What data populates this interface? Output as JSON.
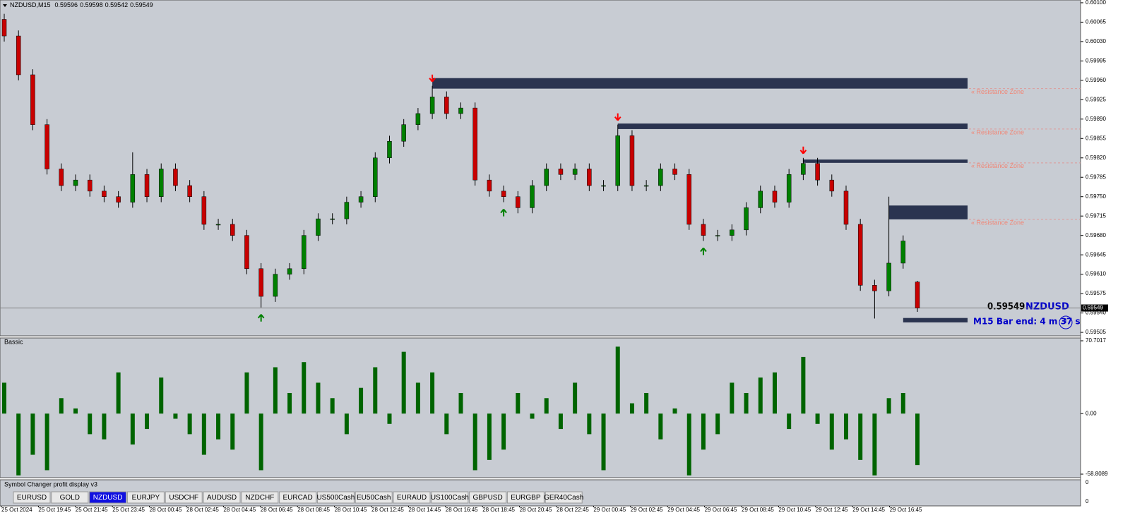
{
  "header": {
    "symbol": "NZDUSD,M15",
    "quote": [
      "0.59596",
      "0.59598",
      "0.59542",
      "0.59549"
    ]
  },
  "chart_data": {
    "type": "candlestick",
    "open": [
      0.6007,
      0.6004,
      0.5997,
      0.5988,
      0.598,
      0.5977,
      0.5978,
      0.5976,
      0.5975,
      0.5974,
      0.5979,
      0.5975,
      0.598,
      0.5977,
      0.5975,
      0.597,
      0.597,
      0.5968,
      0.5962,
      0.5957,
      0.5961,
      0.5962,
      0.5968,
      0.5971,
      0.5971,
      0.5974,
      0.5975,
      0.5982,
      0.5985,
      0.5988,
      0.599,
      0.5993,
      0.599,
      0.5991,
      0.5978,
      0.5976,
      0.5975,
      0.5973,
      0.5977,
      0.598,
      0.5979,
      0.598,
      0.5977,
      0.5977,
      0.5986,
      0.5977,
      0.5977,
      0.598,
      0.5979,
      0.597,
      0.5968,
      0.5968,
      0.5969,
      0.5973,
      0.5976,
      0.5974,
      0.5979,
      0.5981,
      0.5978,
      0.5976,
      0.597,
      0.5959,
      0.5958,
      0.5963,
      0.59596
    ],
    "high": [
      0.6008,
      0.6005,
      0.5998,
      0.5989,
      0.5981,
      0.5979,
      0.5979,
      0.5977,
      0.5976,
      0.5983,
      0.598,
      0.5981,
      0.5981,
      0.5978,
      0.5976,
      0.5971,
      0.5971,
      0.5969,
      0.5963,
      0.5962,
      0.5963,
      0.5969,
      0.5972,
      0.5972,
      0.5975,
      0.5976,
      0.5983,
      0.5986,
      0.5989,
      0.5991,
      0.5995,
      0.5994,
      0.5992,
      0.5992,
      0.5979,
      0.5977,
      0.5976,
      0.5978,
      0.5981,
      0.5981,
      0.5981,
      0.5981,
      0.5978,
      0.5988,
      0.5987,
      0.5978,
      0.5981,
      0.5981,
      0.598,
      0.5971,
      0.5969,
      0.597,
      0.5974,
      0.5977,
      0.5977,
      0.598,
      0.5982,
      0.5982,
      0.5979,
      0.5977,
      0.5971,
      0.596,
      0.5975,
      0.5968,
      0.59598
    ],
    "low": [
      0.6003,
      0.5996,
      0.5987,
      0.5979,
      0.5976,
      0.5976,
      0.5975,
      0.5974,
      0.5973,
      0.5973,
      0.5974,
      0.5974,
      0.5976,
      0.5974,
      0.5969,
      0.5969,
      0.5967,
      0.5961,
      0.5955,
      0.5956,
      0.596,
      0.5961,
      0.5967,
      0.597,
      0.597,
      0.5973,
      0.5974,
      0.5981,
      0.5984,
      0.5987,
      0.5989,
      0.5989,
      0.5989,
      0.5977,
      0.5975,
      0.5974,
      0.5972,
      0.5972,
      0.5976,
      0.5978,
      0.5978,
      0.5976,
      0.5976,
      0.5976,
      0.5976,
      0.5976,
      0.5976,
      0.5978,
      0.5969,
      0.5967,
      0.5967,
      0.5967,
      0.5968,
      0.5972,
      0.5973,
      0.5973,
      0.5978,
      0.5977,
      0.5975,
      0.5969,
      0.5958,
      0.5953,
      0.5957,
      0.5962,
      0.59542
    ],
    "close": [
      0.6004,
      0.5997,
      0.5988,
      0.598,
      0.5977,
      0.5978,
      0.5976,
      0.5975,
      0.5974,
      0.5979,
      0.5975,
      0.598,
      0.5977,
      0.5975,
      0.597,
      0.597,
      0.5968,
      0.5962,
      0.5957,
      0.5961,
      0.5962,
      0.5968,
      0.5971,
      0.5971,
      0.5974,
      0.5975,
      0.5982,
      0.5985,
      0.5988,
      0.599,
      0.5993,
      0.599,
      0.5991,
      0.5978,
      0.5976,
      0.5975,
      0.5973,
      0.5977,
      0.598,
      0.5979,
      0.598,
      0.5977,
      0.5977,
      0.5986,
      0.5977,
      0.5977,
      0.598,
      0.5979,
      0.597,
      0.5968,
      0.5968,
      0.5969,
      0.5973,
      0.5976,
      0.5974,
      0.5979,
      0.5981,
      0.5978,
      0.5976,
      0.597,
      0.5959,
      0.5958,
      0.5963,
      0.5967,
      0.59549
    ],
    "bull_color": "#008000",
    "bear_color": "#c80000",
    "ylim": [
      0.595,
      0.60105
    ],
    "yticks": [
      {
        "value": 0.601,
        "label": "0.60100"
      },
      {
        "value": 0.60065,
        "label": "0.60065"
      },
      {
        "value": 0.6003,
        "label": "0.60030"
      },
      {
        "value": 0.59995,
        "label": "0.59995"
      },
      {
        "value": 0.5996,
        "label": "0.59960"
      },
      {
        "value": 0.59925,
        "label": "0.59925"
      },
      {
        "value": 0.5989,
        "label": "0.59890"
      },
      {
        "value": 0.59855,
        "label": "0.59855"
      },
      {
        "value": 0.5982,
        "label": "0.59820"
      },
      {
        "value": 0.59785,
        "label": "0.59785"
      },
      {
        "value": 0.5975,
        "label": "0.59750"
      },
      {
        "value": 0.59715,
        "label": "0.59715"
      },
      {
        "value": 0.5968,
        "label": "0.59680"
      },
      {
        "value": 0.59645,
        "label": "0.59645"
      },
      {
        "value": 0.5961,
        "label": "0.59610"
      },
      {
        "value": 0.59575,
        "label": "0.59575"
      },
      {
        "value": 0.5954,
        "label": "0.59540"
      },
      {
        "value": 0.59505,
        "label": "0.59505"
      }
    ],
    "current_price": {
      "value": 0.59549,
      "label": "0.59549"
    },
    "zones": [
      {
        "top": 0.59964,
        "bottom": 0.59945,
        "start": 30,
        "label": "« Resistance Zone"
      },
      {
        "top": 0.59882,
        "bottom": 0.59872,
        "start": 43,
        "label": "« Resistance Zone"
      },
      {
        "top": 0.59817,
        "bottom": 0.59811,
        "start": 56,
        "label": "« Resistance Zone"
      },
      {
        "top": 0.59734,
        "bottom": 0.59709,
        "start": 62,
        "label": "« Resistance Zone"
      },
      {
        "top": 0.59531,
        "bottom": 0.59523,
        "start": 63
      }
    ],
    "zone_color": "#2b3450",
    "signals": [
      {
        "index": 30,
        "dir": "down"
      },
      {
        "index": 43,
        "dir": "down"
      },
      {
        "index": 56,
        "dir": "down"
      },
      {
        "index": 18,
        "dir": "up"
      },
      {
        "index": 35,
        "dir": "up"
      },
      {
        "index": 49,
        "dir": "up"
      }
    ],
    "x_labels": [
      "25 Oct 2024",
      "25 Oct 19:45",
      "25 Oct 21:45",
      "25 Oct 23:45",
      "28 Oct 00:45",
      "28 Oct 02:45",
      "28 Oct 04:45",
      "28 Oct 06:45",
      "28 Oct 08:45",
      "28 Oct 10:45",
      "28 Oct 12:45",
      "28 Oct 14:45",
      "28 Oct 16:45",
      "28 Oct 18:45",
      "28 Oct 20:45",
      "28 Oct 22:45",
      "29 Oct 00:45",
      "29 Oct 02:45",
      "29 Oct 04:45",
      "29 Oct 06:45",
      "29 Oct 08:45",
      "29 Oct 10:45",
      "29 Oct 12:45",
      "29 Oct 14:45",
      "29 Oct 16:45"
    ]
  },
  "indicator": {
    "type": "bar",
    "title": "Bassic",
    "color": "#006400",
    "values": [
      30,
      -60,
      -40,
      -55,
      15,
      5,
      -20,
      -25,
      40,
      -30,
      -15,
      35,
      -5,
      -20,
      -40,
      -25,
      -35,
      40,
      -55,
      45,
      20,
      50,
      30,
      15,
      -20,
      25,
      45,
      -10,
      60,
      30,
      40,
      -20,
      20,
      -55,
      -45,
      -35,
      20,
      -5,
      15,
      -15,
      30,
      -20,
      -55,
      65,
      10,
      20,
      -25,
      5,
      -60,
      -35,
      -20,
      30,
      20,
      35,
      40,
      -15,
      55,
      -10,
      -35,
      -25,
      -45,
      -60,
      15,
      20,
      -50
    ],
    "ylim": [
      -58.8089,
      70.7017
    ],
    "yticks": [
      70.7017,
      {
        "value": 0,
        "label": "0.00"
      },
      -58.8089
    ]
  },
  "info": {
    "price": "0.59549",
    "symbol": "NZDUSD",
    "bar_end": "M15 Bar end: 4 m 37 s"
  },
  "symbol_panel": {
    "title": "Symbol Changer profit display v3",
    "axis_labels": [
      "0",
      "0"
    ],
    "buttons": [
      "EURUSD",
      "GOLD",
      "NZDUSD",
      "EURJPY",
      "USDCHF",
      "AUDUSD",
      "NZDCHF",
      "EURCAD",
      "US500Cash",
      "EU50Cash",
      "EURAUD",
      "US100Cash",
      "GBPUSD",
      "EURGBP",
      "GER40Cash"
    ],
    "active": 2
  }
}
